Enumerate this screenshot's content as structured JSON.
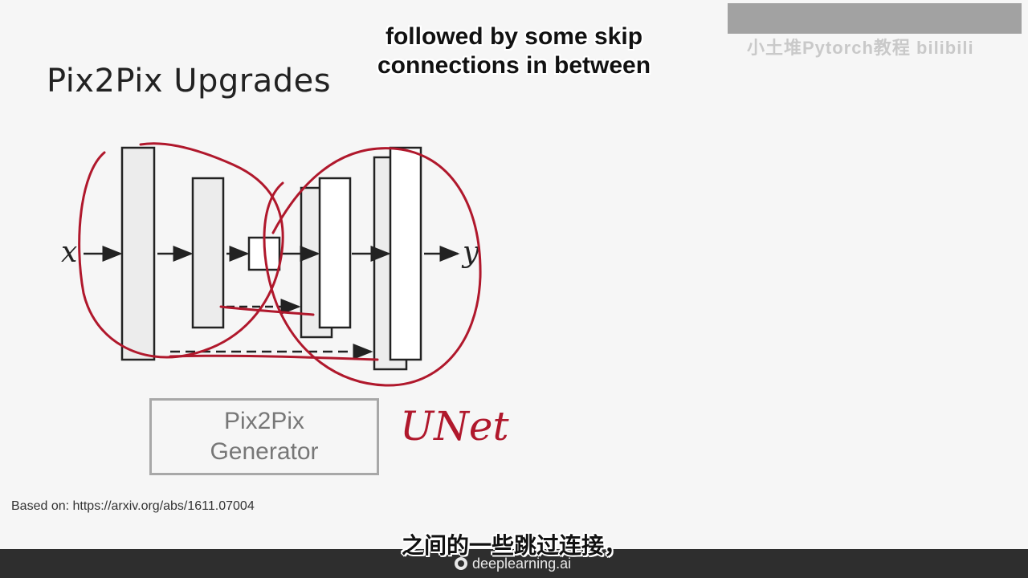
{
  "slide": {
    "title": "Pix2Pix Upgrades",
    "subtitle_en": "followed by some skip connections in between",
    "subtitle_zh": "之间的一些跳过连接，",
    "watermark": "小土堆Pytorch教程 bilibili",
    "generator_line1": "Pix2Pix",
    "generator_line2": "Generator",
    "annotation": "UNet",
    "source": "Based on: https://arxiv.org/abs/1611.07004",
    "brand": "deeplearning.ai"
  },
  "diagram": {
    "input_label": "x",
    "output_label": "y",
    "annotation_color": "#b0182c",
    "block_color": "#ececec"
  }
}
